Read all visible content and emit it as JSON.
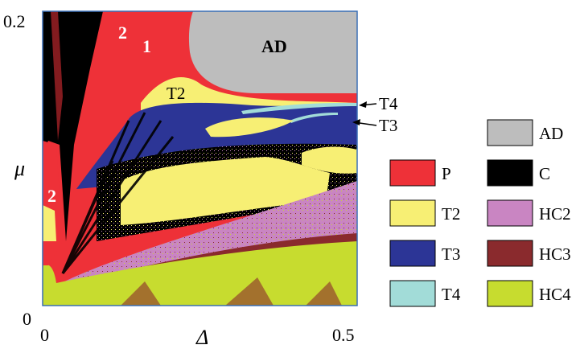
{
  "chart_data": {
    "type": "heatmap",
    "title": "",
    "xlabel": "Δ",
    "ylabel": "μ",
    "xlim": [
      0,
      0.5
    ],
    "ylim": [
      0,
      0.2
    ],
    "x_ticks": [
      "0",
      "0.5"
    ],
    "y_ticks": [
      "0",
      "0.2"
    ],
    "legend_position": "right",
    "legend": [
      {
        "key": "AD",
        "label": "AD",
        "color": "#bdbdbd"
      },
      {
        "key": "P",
        "label": "P",
        "color": "#ee3138"
      },
      {
        "key": "C",
        "label": "C",
        "color": "#000000"
      },
      {
        "key": "T2",
        "label": "T2",
        "color": "#f7ef74"
      },
      {
        "key": "HC2",
        "label": "HC2",
        "color": "#c985c2"
      },
      {
        "key": "T3",
        "label": "T3",
        "color": "#2c3596"
      },
      {
        "key": "HC3",
        "label": "HC3",
        "color": "#8a2a2d"
      },
      {
        "key": "T4",
        "label": "T4",
        "color": "#a2dcd8"
      },
      {
        "key": "HC4",
        "label": "HC4",
        "color": "#c7dc2f"
      }
    ],
    "region_labels": [
      {
        "text": "AD",
        "style": "black"
      },
      {
        "text": "1",
        "style": "white"
      },
      {
        "text": "2",
        "style": "white"
      },
      {
        "text": "2",
        "style": "white"
      },
      {
        "text": "T2",
        "style": "plain"
      }
    ],
    "callouts": [
      {
        "text": "T4"
      },
      {
        "text": "T3"
      }
    ]
  }
}
